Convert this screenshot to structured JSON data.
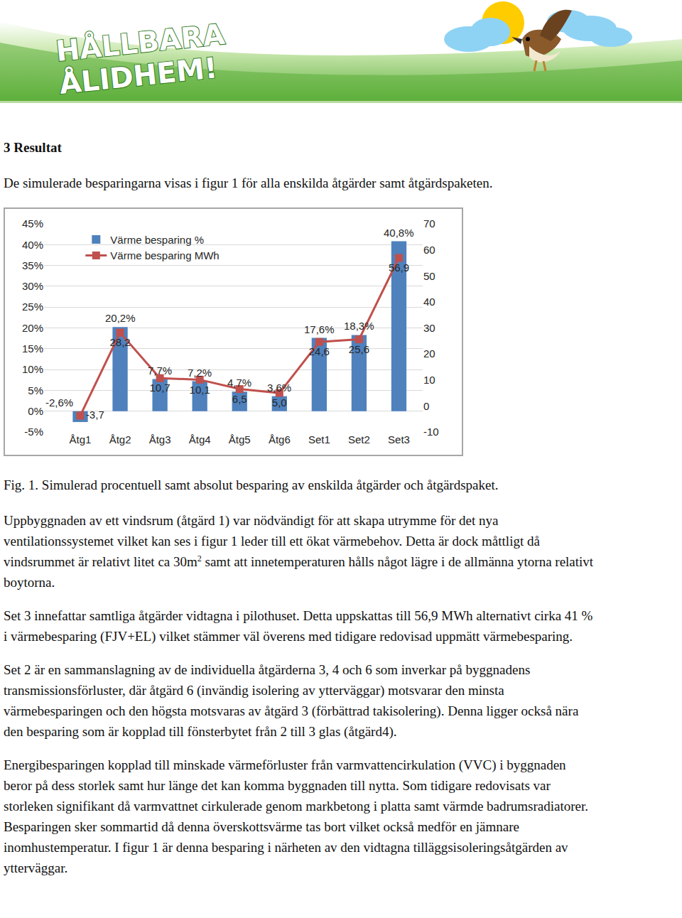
{
  "logo": [
    "HÅLLBARA",
    "ÅLIDHEM!"
  ],
  "heading": "3 Resultat",
  "intro": "De simulerade besparingarna visas i figur 1 för alla enskilda åtgärder samt åtgärdspaketen.",
  "chart_data": {
    "type": "bar",
    "categories": [
      "Åtg1",
      "Åtg2",
      "Åtg3",
      "Åtg4",
      "Åtg5",
      "Åtg6",
      "Set1",
      "Set2",
      "Set3"
    ],
    "series": [
      {
        "name": "Värme besparing %",
        "type": "bar",
        "color": "#4f81bd",
        "values": [
          -2.6,
          20.2,
          7.7,
          7.2,
          4.7,
          3.6,
          17.6,
          18.3,
          40.8
        ],
        "value_labels": [
          "-2,6%",
          "20,2%",
          "7,7%",
          "7,2%",
          "4,7%",
          "3,6%",
          "17,6%",
          "18,3%",
          "40,8%"
        ]
      },
      {
        "name": "Värme besparing MWh",
        "type": "line",
        "axis": "y2",
        "color": "#c0504d",
        "marker": "square",
        "values": [
          -3.7,
          28.2,
          10.7,
          10.1,
          6.5,
          5.0,
          24.6,
          25.6,
          56.9
        ],
        "value_labels": [
          "-3,7",
          "28,2",
          "10,7",
          "10,1",
          "6,5",
          "5,0",
          "24,6",
          "25,6",
          "56,9"
        ]
      }
    ],
    "ylim": [
      -5,
      45
    ],
    "yticks": [
      {
        "value": -5,
        "label": "-5%"
      },
      {
        "value": 0,
        "label": "0%"
      },
      {
        "value": 5,
        "label": "5%"
      },
      {
        "value": 10,
        "label": "10%"
      },
      {
        "value": 15,
        "label": "15%"
      },
      {
        "value": 20,
        "label": "20%"
      },
      {
        "value": 25,
        "label": "25%"
      },
      {
        "value": 30,
        "label": "30%"
      },
      {
        "value": 35,
        "label": "35%"
      },
      {
        "value": 40,
        "label": "40%"
      },
      {
        "value": 45,
        "label": "45%"
      }
    ],
    "y2lim": [
      -10,
      70
    ],
    "y2ticks": [
      -10,
      0,
      10,
      20,
      30,
      40,
      50,
      60,
      70
    ],
    "grid": true,
    "legend": "top left",
    "data_labels": true
  },
  "caption": "Fig. 1. Simulerad procentuell samt absolut besparing av enskilda åtgärder och åtgärdspaket.",
  "paragraphs": [
    [
      {
        "text": "Uppbyggnaden av ett vindsrum (åtgärd 1) var nödvändigt för att skapa utrymme för det nya ventilationssystemet vilket kan ses i figur 1 leder till ett ökat värmebehov. Detta är dock måttligt då vindsrummet är relativt litet ca 30m"
      },
      {
        "text": "2",
        "sup": true
      },
      {
        "text": " samt att innetemperaturen hålls något lägre i de allmänna ytorna relativt boytorna."
      }
    ],
    [
      {
        "text": "Set 3 innefattar samtliga åtgärder vidtagna i pilothuset. Detta uppskattas till 56,9 MWh alternativt cirka 41 % i värmebesparing (FJV+EL) vilket stämmer väl överens med tidigare redovisad uppmätt värmebesparing."
      }
    ],
    [
      {
        "text": "Set 2 är en sammanslagning av de individuella åtgärderna 3, 4 och 6 som inverkar på byggnadens transmissionsförluster, där åtgärd 6 (invändig isolering av ytterväggar) motsvarar den minsta värmebesparingen och den högsta motsvaras av åtgärd 3 (förbättrad takisolering). Denna ligger också nära den besparing som är kopplad till fönsterbytet från 2 till 3 glas (åtgärd4)."
      }
    ],
    [
      {
        "text": "Energibesparingen kopplad till minskade värmeförluster från varmvattencirkulation (VVC) i byggnaden beror på dess storlek samt hur länge det kan komma byggnaden till nytta. Som tidigare redovisats var storleken signifikant då varmvattnet cirkulerade genom markbetong i platta samt värmde badrumsradiatorer. Besparingen sker sommartid då denna överskottsvärme tas bort vilket också medför en jämnare inomhustemperatur. I figur 1 är denna besparing i närheten av den vidtagna tilläggsisoleringsåtgärden av ytterväggar."
      }
    ]
  ]
}
